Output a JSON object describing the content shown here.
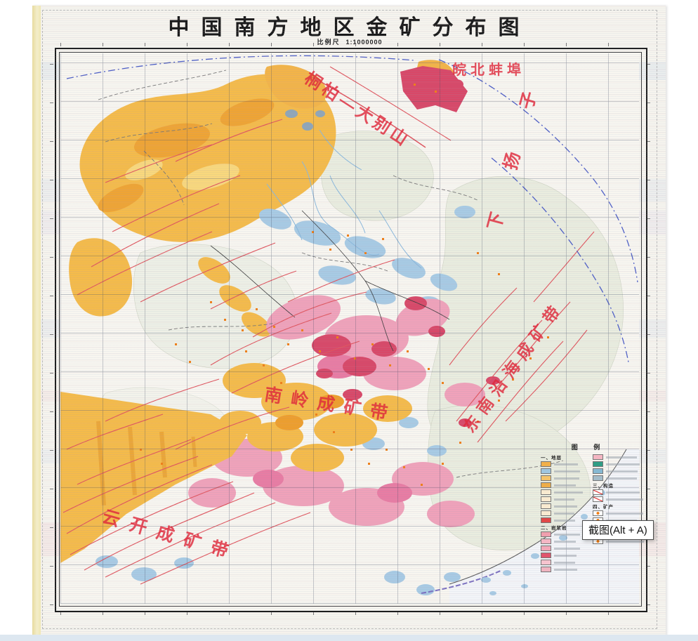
{
  "map_sheet": {
    "title": "中国南方地区金矿分布图",
    "scale_label": "比例尺",
    "scale_value": "1:1000000",
    "region_labels": [
      {
        "text": "皖北蚌埠"
      },
      {
        "text": "桐柏—大别山"
      },
      {
        "text": "下扬子"
      },
      {
        "text": "南岭成矿带"
      },
      {
        "text": "东南沿海成矿带"
      },
      {
        "text": "云开成矿带"
      }
    ],
    "legend": {
      "title": "图 例",
      "columns": [
        [
          {
            "type": "header",
            "text": "一、地层"
          },
          {
            "type": "box",
            "color": "#f2b04a"
          },
          {
            "type": "box",
            "color": "#9fc6df"
          },
          {
            "type": "box",
            "color": "#f4c36a"
          },
          {
            "type": "box",
            "color": "#eead49"
          },
          {
            "type": "box",
            "color": "#f8ead0"
          },
          {
            "type": "box",
            "color": "#f8ead0"
          },
          {
            "type": "box",
            "color": "#f8ead0"
          },
          {
            "type": "box",
            "color": "#f8ead0"
          },
          {
            "type": "box",
            "color": "#e04848"
          },
          {
            "type": "header",
            "text": "二、岩浆岩"
          },
          {
            "type": "box",
            "color": "#ef9fae"
          },
          {
            "type": "box",
            "color": "#f4b6c4"
          },
          {
            "type": "box",
            "color": "#f2a8b8"
          },
          {
            "type": "box",
            "color": "#e0556d"
          },
          {
            "type": "box",
            "color": "#f6c3ce"
          },
          {
            "type": "box",
            "color": "#f0b4c0"
          }
        ],
        [
          {
            "type": "box",
            "color": "#f4b6c2"
          },
          {
            "type": "box",
            "color": "#2f9d85"
          },
          {
            "type": "box",
            "color": "#86b9d2"
          },
          {
            "type": "box",
            "color": "#a4bcc9"
          },
          {
            "type": "header",
            "text": "三、构造"
          },
          {
            "type": "line"
          },
          {
            "type": "line"
          },
          {
            "type": "header",
            "text": "四、矿产"
          },
          {
            "type": "dot"
          },
          {
            "type": "dot"
          },
          {
            "type": "dot"
          },
          {
            "type": "dot"
          },
          {
            "type": "dot"
          }
        ]
      ]
    },
    "colors": {
      "orange_strata": "#f5bb4a",
      "pink_strata": "#f0a2ba",
      "crimson_volcanics": "#d84868",
      "blue_strata": "#a8cbe4",
      "pale_strata": "#eaeddf",
      "fault_red": "#e0555e",
      "boundary_blue": "#4d5ec6",
      "gold_deposit_orange": "#f07f18",
      "label_red": "#de2a3c"
    }
  },
  "overlay": {
    "tooltip_label": "截图(Alt + A)"
  }
}
